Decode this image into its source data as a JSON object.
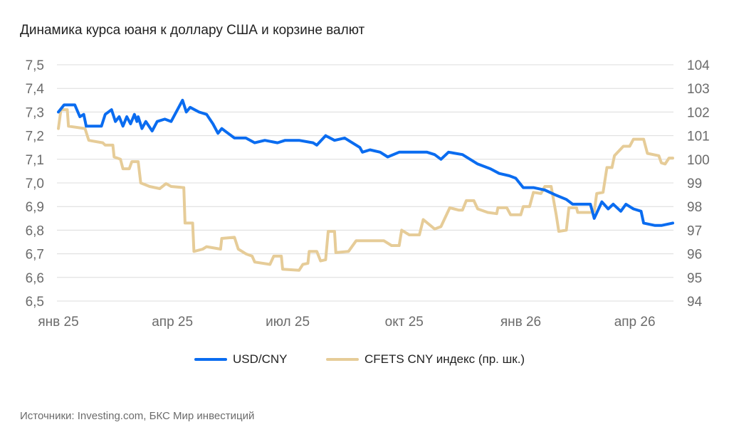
{
  "chart_data": {
    "type": "line",
    "title": "Динамика курса юаня к доллару США и корзине валют",
    "x_unit": "days since 1 Jan 2025",
    "x_ticks": [
      {
        "day": 0,
        "label": "янв 25"
      },
      {
        "day": 90,
        "label": "апр 25"
      },
      {
        "day": 181,
        "label": "июл 25"
      },
      {
        "day": 273,
        "label": "окт 25"
      },
      {
        "day": 365,
        "label": "янв 26"
      },
      {
        "day": 455,
        "label": "апр 26"
      }
    ],
    "xlim": [
      0,
      485
    ],
    "y_left": {
      "ylim": [
        6.5,
        7.5
      ],
      "ticks": [
        "6,5",
        "6,6",
        "6,7",
        "6,8",
        "6,9",
        "7,0",
        "7,1",
        "7,2",
        "7,3",
        "7,4",
        "7,5"
      ]
    },
    "y_right": {
      "ylim": [
        94,
        104
      ],
      "ticks": [
        "94",
        "95",
        "96",
        "97",
        "98",
        "99",
        "100",
        "101",
        "102",
        "103",
        "104"
      ]
    },
    "grid": true,
    "legend_position": "bottom",
    "series": [
      {
        "name": "USD/CNY",
        "axis": "left",
        "color": "#0a6cf0",
        "points": [
          [
            0,
            7.3
          ],
          [
            4.5,
            7.33
          ],
          [
            13,
            7.33
          ],
          [
            17,
            7.28
          ],
          [
            20,
            7.29
          ],
          [
            22,
            7.24
          ],
          [
            34,
            7.24
          ],
          [
            37,
            7.29
          ],
          [
            42,
            7.31
          ],
          [
            45,
            7.26
          ],
          [
            48,
            7.28
          ],
          [
            51,
            7.24
          ],
          [
            54,
            7.28
          ],
          [
            57,
            7.25
          ],
          [
            60,
            7.29
          ],
          [
            62,
            7.26
          ],
          [
            63,
            7.28
          ],
          [
            66,
            7.23
          ],
          [
            69,
            7.26
          ],
          [
            74,
            7.22
          ],
          [
            78,
            7.26
          ],
          [
            84,
            7.27
          ],
          [
            89,
            7.26
          ],
          [
            94,
            7.31
          ],
          [
            98,
            7.35
          ],
          [
            101,
            7.3
          ],
          [
            104,
            7.32
          ],
          [
            111,
            7.3
          ],
          [
            117,
            7.29
          ],
          [
            122,
            7.25
          ],
          [
            126,
            7.21
          ],
          [
            129,
            7.23
          ],
          [
            134,
            7.21
          ],
          [
            139,
            7.19
          ],
          [
            148,
            7.19
          ],
          [
            155,
            7.17
          ],
          [
            163,
            7.18
          ],
          [
            173,
            7.17
          ],
          [
            179,
            7.18
          ],
          [
            190,
            7.18
          ],
          [
            201,
            7.17
          ],
          [
            204,
            7.16
          ],
          [
            211,
            7.2
          ],
          [
            218,
            7.18
          ],
          [
            226,
            7.19
          ],
          [
            232,
            7.17
          ],
          [
            238,
            7.15
          ],
          [
            240,
            7.13
          ],
          [
            246,
            7.14
          ],
          [
            254,
            7.13
          ],
          [
            260,
            7.11
          ],
          [
            269,
            7.13
          ],
          [
            280,
            7.13
          ],
          [
            291,
            7.13
          ],
          [
            297,
            7.12
          ],
          [
            302,
            7.1
          ],
          [
            308,
            7.13
          ],
          [
            319,
            7.12
          ],
          [
            325,
            7.1
          ],
          [
            331,
            7.08
          ],
          [
            341,
            7.06
          ],
          [
            348,
            7.04
          ],
          [
            356,
            7.03
          ],
          [
            361,
            7.02
          ],
          [
            367,
            6.98
          ],
          [
            375,
            6.98
          ],
          [
            384,
            6.97
          ],
          [
            392,
            6.95
          ],
          [
            401,
            6.93
          ],
          [
            406,
            6.91
          ],
          [
            409,
            6.91
          ],
          [
            420,
            6.91
          ],
          [
            423,
            6.85
          ],
          [
            429,
            6.92
          ],
          [
            434,
            6.89
          ],
          [
            438,
            6.91
          ],
          [
            444,
            6.88
          ],
          [
            448,
            6.91
          ],
          [
            454,
            6.89
          ],
          [
            460,
            6.88
          ],
          [
            462,
            6.83
          ],
          [
            471,
            6.82
          ],
          [
            476,
            6.82
          ],
          [
            485,
            6.83
          ]
        ]
      },
      {
        "name": "CFETS CNY индекс (пр. шк.)",
        "axis": "right",
        "color": "#e6cc98",
        "points": [
          [
            0,
            101.3
          ],
          [
            2,
            102.1
          ],
          [
            7,
            102.1
          ],
          [
            8,
            101.4
          ],
          [
            21,
            101.3
          ],
          [
            24,
            100.8
          ],
          [
            35,
            100.7
          ],
          [
            37,
            100.6
          ],
          [
            43,
            100.6
          ],
          [
            44,
            100.1
          ],
          [
            49,
            100.0
          ],
          [
            51,
            99.6
          ],
          [
            56,
            99.6
          ],
          [
            58,
            99.9
          ],
          [
            63,
            99.9
          ],
          [
            65,
            99.0
          ],
          [
            72,
            98.85
          ],
          [
            80,
            98.76
          ],
          [
            85,
            98.97
          ],
          [
            89,
            98.85
          ],
          [
            99,
            98.8
          ],
          [
            100,
            97.3
          ],
          [
            106,
            97.3
          ],
          [
            107,
            96.1
          ],
          [
            114,
            96.2
          ],
          [
            117,
            96.3
          ],
          [
            128,
            96.2
          ],
          [
            129,
            96.65
          ],
          [
            139,
            96.7
          ],
          [
            142,
            96.2
          ],
          [
            148,
            96.0
          ],
          [
            153,
            95.9
          ],
          [
            155,
            95.65
          ],
          [
            167,
            95.55
          ],
          [
            170,
            95.9
          ],
          [
            176,
            95.9
          ],
          [
            177,
            95.35
          ],
          [
            190,
            95.3
          ],
          [
            193,
            95.55
          ],
          [
            197,
            95.6
          ],
          [
            198,
            96.1
          ],
          [
            204,
            96.1
          ],
          [
            207,
            95.7
          ],
          [
            211,
            95.75
          ],
          [
            213,
            96.95
          ],
          [
            218,
            96.95
          ],
          [
            219,
            96.05
          ],
          [
            229,
            96.1
          ],
          [
            235,
            96.55
          ],
          [
            257,
            96.55
          ],
          [
            263,
            96.35
          ],
          [
            269,
            96.35
          ],
          [
            271,
            97.0
          ],
          [
            277,
            96.8
          ],
          [
            285,
            96.8
          ],
          [
            288,
            97.45
          ],
          [
            297,
            97.05
          ],
          [
            302,
            97.15
          ],
          [
            309,
            97.95
          ],
          [
            316,
            97.85
          ],
          [
            319,
            97.85
          ],
          [
            322,
            98.25
          ],
          [
            328,
            98.25
          ],
          [
            331,
            97.9
          ],
          [
            339,
            97.75
          ],
          [
            346,
            97.7
          ],
          [
            347,
            97.95
          ],
          [
            354,
            97.95
          ],
          [
            357,
            97.65
          ],
          [
            365,
            97.65
          ],
          [
            367,
            98.0
          ],
          [
            372,
            98.0
          ],
          [
            375,
            98.6
          ],
          [
            381,
            98.55
          ],
          [
            384,
            98.85
          ],
          [
            389,
            98.85
          ],
          [
            393,
            97.65
          ],
          [
            395,
            96.95
          ],
          [
            401,
            97.0
          ],
          [
            403,
            97.95
          ],
          [
            409,
            97.95
          ],
          [
            410,
            97.75
          ],
          [
            420,
            97.75
          ],
          [
            423,
            97.8
          ],
          [
            425,
            98.55
          ],
          [
            430,
            98.6
          ],
          [
            433,
            99.65
          ],
          [
            437,
            99.65
          ],
          [
            439,
            100.15
          ],
          [
            446,
            100.55
          ],
          [
            451,
            100.55
          ],
          [
            454,
            100.85
          ],
          [
            462,
            100.85
          ],
          [
            465,
            100.25
          ],
          [
            474,
            100.15
          ],
          [
            476,
            99.85
          ],
          [
            479,
            99.8
          ],
          [
            482,
            100.05
          ],
          [
            485,
            100.05
          ]
        ]
      }
    ],
    "source": "Источники: Investing.com, БКС Мир инвестиций"
  }
}
